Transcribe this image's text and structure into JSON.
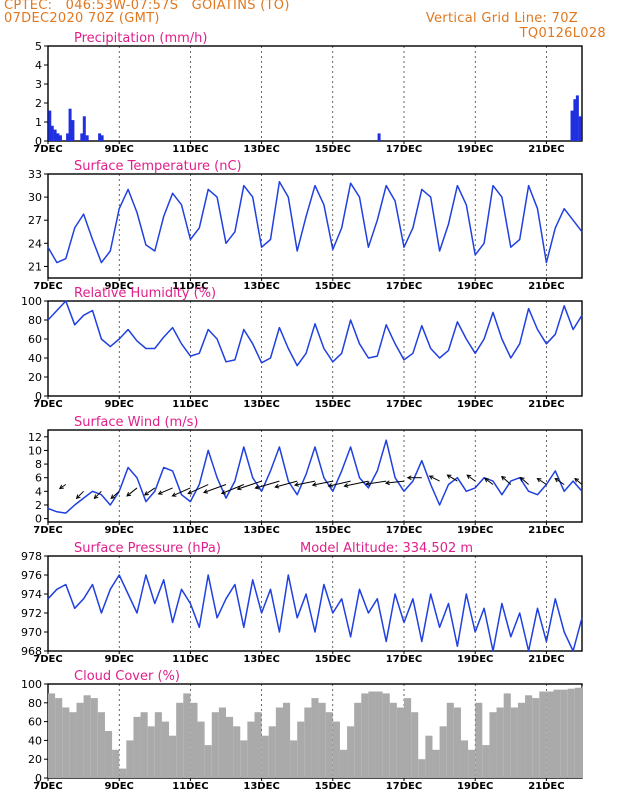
{
  "header": {
    "station": "CPTEC:   046:53W-07:57S   GOIATINS (TO)",
    "datetime": "07DEC2020 70Z (GMT)",
    "grid_note": "Vertical Grid Line: 70Z",
    "code": "TQ0126L028"
  },
  "x_ticks": [
    "7DEC",
    "9DEC",
    "11DEC",
    "13DEC",
    "15DEC",
    "17DEC",
    "19DEC",
    "21DEC"
  ],
  "x_tick_days": [
    7,
    9,
    11,
    13,
    15,
    17,
    19,
    21
  ],
  "xlim": [
    7,
    22
  ],
  "colors": {
    "header": "#e07820",
    "title": "#e0208a",
    "line": "#2040e0",
    "bar": "#2030e0",
    "cloud": "#aaaaaa",
    "grid": "#000000"
  },
  "chart_data": [
    {
      "type": "bar",
      "title": "Precipitation (mm/h)",
      "ylim": [
        0,
        5
      ],
      "yticks": [
        0,
        1,
        2,
        3,
        4,
        5
      ],
      "x": [
        7.05,
        7.12,
        7.2,
        7.28,
        7.35,
        7.55,
        7.62,
        7.7,
        7.95,
        8.02,
        8.1,
        8.45,
        8.52,
        16.3,
        21.72,
        21.8,
        21.87,
        21.95
      ],
      "values": [
        1.6,
        0.8,
        0.6,
        0.4,
        0.3,
        0.4,
        1.7,
        1.1,
        0.4,
        1.3,
        0.3,
        0.4,
        0.3,
        0.4,
        1.6,
        2.2,
        2.4,
        1.3
      ]
    },
    {
      "type": "line",
      "title": "Surface Temperature (nC)",
      "ylim": [
        19.5,
        33
      ],
      "yticks": [
        21,
        24,
        27,
        30,
        33
      ],
      "x": [
        7.0,
        7.25,
        7.5,
        7.75,
        8.0,
        8.25,
        8.5,
        8.75,
        9.0,
        9.25,
        9.5,
        9.75,
        10.0,
        10.25,
        10.5,
        10.75,
        11.0,
        11.25,
        11.5,
        11.75,
        12.0,
        12.25,
        12.5,
        12.75,
        13.0,
        13.25,
        13.5,
        13.75,
        14.0,
        14.25,
        14.5,
        14.75,
        15.0,
        15.25,
        15.5,
        15.75,
        16.0,
        16.25,
        16.5,
        16.75,
        17.0,
        17.25,
        17.5,
        17.75,
        18.0,
        18.25,
        18.5,
        18.75,
        19.0,
        19.25,
        19.5,
        19.75,
        20.0,
        20.25,
        20.5,
        20.75,
        21.0,
        21.25,
        21.5,
        21.75,
        22.0
      ],
      "values": [
        23.5,
        21.5,
        22.0,
        26.0,
        27.8,
        24.5,
        21.5,
        23.0,
        28.5,
        31.0,
        28.0,
        23.8,
        23.0,
        27.5,
        30.5,
        29.0,
        24.5,
        26.0,
        31.0,
        30.0,
        24.0,
        25.5,
        31.5,
        30.0,
        23.5,
        24.5,
        32.0,
        30.0,
        23.0,
        27.5,
        31.5,
        29.0,
        23.2,
        26.0,
        31.8,
        30.0,
        23.5,
        27.0,
        31.5,
        29.5,
        23.5,
        26.0,
        31.0,
        30.0,
        23.0,
        26.5,
        31.5,
        29.0,
        22.5,
        24.0,
        31.5,
        30.0,
        23.5,
        24.5,
        31.5,
        28.5,
        21.5,
        26.0,
        28.5,
        27.0,
        25.5
      ]
    },
    {
      "type": "line",
      "title": "Relative Humidity (%)",
      "ylim": [
        0,
        100
      ],
      "yticks": [
        0,
        20,
        40,
        60,
        80,
        100
      ],
      "x": [
        7.0,
        7.25,
        7.5,
        7.75,
        8.0,
        8.25,
        8.5,
        8.75,
        9.0,
        9.25,
        9.5,
        9.75,
        10.0,
        10.25,
        10.5,
        10.75,
        11.0,
        11.25,
        11.5,
        11.75,
        12.0,
        12.25,
        12.5,
        12.75,
        13.0,
        13.25,
        13.5,
        13.75,
        14.0,
        14.25,
        14.5,
        14.75,
        15.0,
        15.25,
        15.5,
        15.75,
        16.0,
        16.25,
        16.5,
        16.75,
        17.0,
        17.25,
        17.5,
        17.75,
        18.0,
        18.25,
        18.5,
        18.75,
        19.0,
        19.25,
        19.5,
        19.75,
        20.0,
        20.25,
        20.5,
        20.75,
        21.0,
        21.25,
        21.5,
        21.75,
        22.0
      ],
      "values": [
        80,
        90,
        100,
        75,
        85,
        90,
        60,
        52,
        60,
        70,
        58,
        50,
        50,
        62,
        72,
        55,
        42,
        45,
        70,
        60,
        36,
        38,
        70,
        55,
        35,
        40,
        72,
        50,
        32,
        45,
        76,
        50,
        36,
        45,
        80,
        55,
        40,
        42,
        75,
        55,
        38,
        45,
        74,
        50,
        40,
        48,
        78,
        60,
        45,
        60,
        88,
        60,
        40,
        55,
        92,
        70,
        55,
        65,
        95,
        70,
        85
      ]
    },
    {
      "type": "line",
      "title": "Surface Wind (m/s)",
      "ylim": [
        -0.5,
        13
      ],
      "yticks": [
        0,
        2,
        4,
        6,
        8,
        10,
        12
      ],
      "x": [
        7.0,
        7.25,
        7.5,
        7.75,
        8.0,
        8.25,
        8.5,
        8.75,
        9.0,
        9.25,
        9.5,
        9.75,
        10.0,
        10.25,
        10.5,
        10.75,
        11.0,
        11.25,
        11.5,
        11.75,
        12.0,
        12.25,
        12.5,
        12.75,
        13.0,
        13.25,
        13.5,
        13.75,
        14.0,
        14.25,
        14.5,
        14.75,
        15.0,
        15.25,
        15.5,
        15.75,
        16.0,
        16.25,
        16.5,
        16.75,
        17.0,
        17.25,
        17.5,
        17.75,
        18.0,
        18.25,
        18.5,
        18.75,
        19.0,
        19.25,
        19.5,
        19.75,
        20.0,
        20.25,
        20.5,
        20.75,
        21.0,
        21.25,
        21.5,
        21.75,
        22.0
      ],
      "values": [
        1.5,
        1.0,
        0.8,
        2.0,
        3.0,
        4.0,
        3.5,
        2.0,
        4.0,
        7.5,
        6.0,
        2.5,
        4.0,
        7.5,
        7.0,
        3.5,
        2.5,
        5.0,
        10.0,
        6.0,
        3.0,
        5.5,
        10.5,
        6.0,
        4.0,
        7.0,
        10.5,
        5.5,
        3.5,
        6.5,
        10.5,
        6.0,
        4.0,
        7.0,
        10.5,
        6.0,
        4.5,
        7.0,
        11.5,
        6.0,
        4.0,
        5.5,
        8.5,
        5.0,
        2.0,
        5.0,
        6.0,
        4.0,
        4.5,
        6.0,
        5.5,
        3.5,
        5.5,
        6.0,
        4.0,
        3.5,
        5.0,
        7.0,
        4.0,
        5.5,
        4.0
      ],
      "arrows": [
        {
          "x": 7.5,
          "y": 5.0,
          "dx": -6,
          "dy": -4
        },
        {
          "x": 8.0,
          "y": 4.0,
          "dx": -7,
          "dy": -7
        },
        {
          "x": 8.5,
          "y": 4.0,
          "dx": -7,
          "dy": -7
        },
        {
          "x": 9.0,
          "y": 4.0,
          "dx": -8,
          "dy": -7
        },
        {
          "x": 9.5,
          "y": 4.5,
          "dx": -10,
          "dy": -8
        },
        {
          "x": 10.0,
          "y": 4.5,
          "dx": -10,
          "dy": -7
        },
        {
          "x": 10.5,
          "y": 4.5,
          "dx": -14,
          "dy": -6
        },
        {
          "x": 11.0,
          "y": 4.5,
          "dx": -18,
          "dy": -8
        },
        {
          "x": 11.5,
          "y": 5.0,
          "dx": -20,
          "dy": -9
        },
        {
          "x": 12.0,
          "y": 5.0,
          "dx": -22,
          "dy": -8
        },
        {
          "x": 12.5,
          "y": 5.0,
          "dx": -22,
          "dy": -9
        },
        {
          "x": 13.0,
          "y": 5.5,
          "dx": -24,
          "dy": -8
        },
        {
          "x": 13.5,
          "y": 5.5,
          "dx": -24,
          "dy": -7
        },
        {
          "x": 14.0,
          "y": 5.5,
          "dx": -22,
          "dy": -6
        },
        {
          "x": 14.5,
          "y": 5.5,
          "dx": -20,
          "dy": -4
        },
        {
          "x": 15.0,
          "y": 5.5,
          "dx": -20,
          "dy": -4
        },
        {
          "x": 15.5,
          "y": 5.5,
          "dx": -22,
          "dy": -5
        },
        {
          "x": 16.0,
          "y": 5.5,
          "dx": -24,
          "dy": -5
        },
        {
          "x": 16.5,
          "y": 5.5,
          "dx": -20,
          "dy": -3
        },
        {
          "x": 17.0,
          "y": 5.5,
          "dx": -18,
          "dy": -2
        },
        {
          "x": 17.5,
          "y": 6.0,
          "dx": -14,
          "dy": 0
        },
        {
          "x": 18.0,
          "y": 5.5,
          "dx": -10,
          "dy": 5
        },
        {
          "x": 18.5,
          "y": 5.5,
          "dx": -10,
          "dy": 6
        },
        {
          "x": 19.0,
          "y": 5.5,
          "dx": -8,
          "dy": 6
        },
        {
          "x": 19.5,
          "y": 5.0,
          "dx": -8,
          "dy": 6
        },
        {
          "x": 20.0,
          "y": 5.0,
          "dx": -9,
          "dy": 8
        },
        {
          "x": 20.5,
          "y": 5.0,
          "dx": -8,
          "dy": 7
        },
        {
          "x": 21.0,
          "y": 5.0,
          "dx": -9,
          "dy": 6
        },
        {
          "x": 21.5,
          "y": 5.0,
          "dx": -9,
          "dy": 6
        },
        {
          "x": 22.0,
          "y": 5.0,
          "dx": -7,
          "dy": 6
        }
      ]
    },
    {
      "type": "line",
      "title": "Surface Pressure (hPa)",
      "subtitle": "Model Altitude: 334.502 m",
      "ylim": [
        968,
        978
      ],
      "yticks": [
        968,
        970,
        972,
        974,
        976,
        978
      ],
      "x": [
        7.0,
        7.25,
        7.5,
        7.75,
        8.0,
        8.25,
        8.5,
        8.75,
        9.0,
        9.25,
        9.5,
        9.75,
        10.0,
        10.25,
        10.5,
        10.75,
        11.0,
        11.25,
        11.5,
        11.75,
        12.0,
        12.25,
        12.5,
        12.75,
        13.0,
        13.25,
        13.5,
        13.75,
        14.0,
        14.25,
        14.5,
        14.75,
        15.0,
        15.25,
        15.5,
        15.75,
        16.0,
        16.25,
        16.5,
        16.75,
        17.0,
        17.25,
        17.5,
        17.75,
        18.0,
        18.25,
        18.5,
        18.75,
        19.0,
        19.25,
        19.5,
        19.75,
        20.0,
        20.25,
        20.5,
        20.75,
        21.0,
        21.25,
        21.5,
        21.75,
        22.0
      ],
      "values": [
        973.5,
        974.5,
        975.0,
        972.5,
        973.5,
        975.0,
        972.0,
        974.5,
        976.0,
        974.0,
        972.0,
        976.0,
        973.0,
        975.5,
        971.0,
        974.5,
        973.0,
        970.5,
        976.0,
        971.5,
        973.5,
        975.0,
        970.5,
        975.5,
        972.0,
        974.5,
        970.0,
        976.0,
        971.5,
        974.0,
        970.0,
        975.0,
        972.0,
        973.5,
        969.5,
        974.5,
        972.0,
        973.5,
        969.0,
        974.0,
        971.0,
        973.5,
        969.0,
        974.0,
        970.5,
        973.0,
        968.5,
        974.0,
        970.0,
        972.5,
        968.0,
        973.0,
        969.5,
        972.0,
        967.5,
        972.5,
        969.0,
        973.5,
        970.0,
        968.0,
        971.5
      ]
    },
    {
      "type": "area",
      "title": "Cloud Cover (%)",
      "ylim": [
        0,
        100
      ],
      "yticks": [
        0,
        20,
        40,
        60,
        80,
        100
      ],
      "x": [
        7.0,
        7.2,
        7.4,
        7.6,
        7.8,
        8.0,
        8.2,
        8.4,
        8.6,
        8.8,
        9.0,
        9.2,
        9.4,
        9.6,
        9.8,
        10.0,
        10.2,
        10.4,
        10.6,
        10.8,
        11.0,
        11.2,
        11.4,
        11.6,
        11.8,
        12.0,
        12.2,
        12.4,
        12.6,
        12.8,
        13.0,
        13.2,
        13.4,
        13.6,
        13.8,
        14.0,
        14.2,
        14.4,
        14.6,
        14.8,
        15.0,
        15.2,
        15.4,
        15.6,
        15.8,
        16.0,
        16.2,
        16.4,
        16.6,
        16.8,
        17.0,
        17.2,
        17.4,
        17.6,
        17.8,
        18.0,
        18.2,
        18.4,
        18.6,
        18.8,
        19.0,
        19.2,
        19.4,
        19.6,
        19.8,
        20.0,
        20.2,
        20.4,
        20.6,
        20.8,
        21.0,
        21.2,
        21.4,
        21.6,
        21.8,
        22.0
      ],
      "values": [
        90,
        85,
        75,
        70,
        80,
        88,
        85,
        70,
        50,
        30,
        10,
        40,
        65,
        70,
        55,
        70,
        60,
        45,
        80,
        90,
        80,
        60,
        35,
        70,
        75,
        65,
        55,
        40,
        60,
        70,
        45,
        55,
        75,
        80,
        40,
        60,
        75,
        85,
        80,
        70,
        60,
        30,
        55,
        80,
        90,
        92,
        92,
        90,
        80,
        75,
        85,
        70,
        20,
        45,
        30,
        55,
        80,
        75,
        40,
        30,
        80,
        35,
        70,
        75,
        90,
        75,
        80,
        88,
        85,
        92,
        92,
        94,
        94,
        95,
        96,
        98
      ]
    }
  ]
}
